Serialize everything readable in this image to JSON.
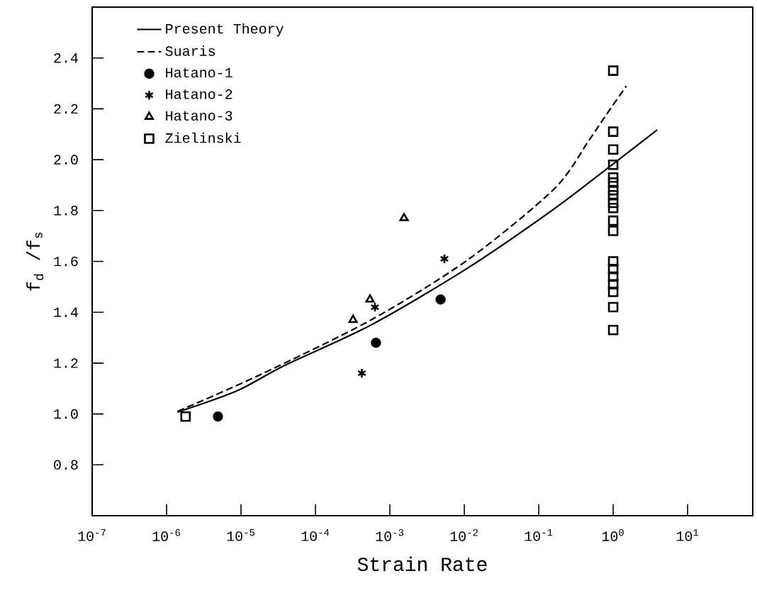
{
  "chart_data": {
    "type": "scatter",
    "xlabel": "Strain Rate",
    "ylabel": "f$_{d}$ /f$_{s}$",
    "log": "x",
    "xlim": [
      1e-07,
      75
    ],
    "ylim": [
      0.6,
      2.6
    ],
    "xticks": [
      {
        "value": 1e-07,
        "label": "10$^{-7}$"
      },
      {
        "value": 1e-06,
        "label": "10$^{-6}$"
      },
      {
        "value": 1e-05,
        "label": "10$^{-5}$"
      },
      {
        "value": 0.0001,
        "label": "10$^{-4}$"
      },
      {
        "value": 0.001,
        "label": "10$^{-3}$"
      },
      {
        "value": 0.01,
        "label": "10$^{-2}$"
      },
      {
        "value": 0.1,
        "label": "10$^{-1}$"
      },
      {
        "value": 1,
        "label": "10$^{0}$"
      },
      {
        "value": 10,
        "label": "10$^{1}$"
      }
    ],
    "yticks": [
      {
        "value": 0.8,
        "label": "0.8"
      },
      {
        "value": 1.0,
        "label": "1.0"
      },
      {
        "value": 1.2,
        "label": "1.2"
      },
      {
        "value": 1.4,
        "label": "1.4"
      },
      {
        "value": 1.6,
        "label": "1.6"
      },
      {
        "value": 1.8,
        "label": "1.8"
      },
      {
        "value": 2.0,
        "label": "2.0"
      },
      {
        "value": 2.2,
        "label": "2.2"
      },
      {
        "value": 2.4,
        "label": "2.4"
      }
    ],
    "grid": false,
    "legend": "top left",
    "series": [
      {
        "name": "Present Theory",
        "type": "line",
        "color": "#000000",
        "marker": "none",
        "line_style": "solid",
        "x": [
          1.4e-06,
          8.7e-06,
          3.8e-05,
          0.00056,
          0.011,
          0.16,
          1.08,
          3.9
        ],
        "values": [
          1.007,
          1.09,
          1.19,
          1.35,
          1.573,
          1.806,
          1.991,
          2.117
        ]
      },
      {
        "name": "Suaris",
        "type": "line",
        "color": "#000000",
        "marker": "none",
        "line_style": "dashed",
        "x": [
          1.4e-06,
          1.8e-05,
          0.00056,
          0.011,
          0.16,
          0.47,
          0.78,
          1.5
        ],
        "values": [
          1.01,
          1.154,
          1.37,
          1.605,
          1.884,
          2.075,
          2.17,
          2.289
        ]
      },
      {
        "name": "Hatano-1",
        "color": "#000000",
        "marker": "circle",
        "x": [
          4.9e-06,
          0.00065,
          0.0048
        ],
        "values": [
          0.99,
          1.28,
          1.45
        ]
      },
      {
        "name": "Hatano-2",
        "color": "#000000",
        "marker": "cross",
        "x": [
          0.00042,
          0.00063,
          0.0054
        ],
        "values": [
          1.16,
          1.42,
          1.61
        ]
      },
      {
        "name": "Hatano-3",
        "color": "#000000",
        "marker": "triangle",
        "x": [
          0.00032,
          0.00054,
          0.00155
        ],
        "values": [
          1.37,
          1.45,
          1.77
        ]
      },
      {
        "name": "Zielinski",
        "color": "#000000",
        "marker": "square",
        "x": [
          1.8e-06,
          1,
          1,
          1,
          1,
          1,
          1,
          1,
          1,
          1,
          1,
          1,
          1,
          1,
          1,
          1,
          1,
          1,
          1,
          1
        ],
        "values": [
          0.99,
          2.35,
          2.11,
          2.04,
          1.98,
          1.93,
          1.91,
          1.88,
          1.86,
          1.83,
          1.81,
          1.76,
          1.72,
          1.6,
          1.57,
          1.54,
          1.51,
          1.48,
          1.42,
          1.33
        ]
      }
    ]
  }
}
